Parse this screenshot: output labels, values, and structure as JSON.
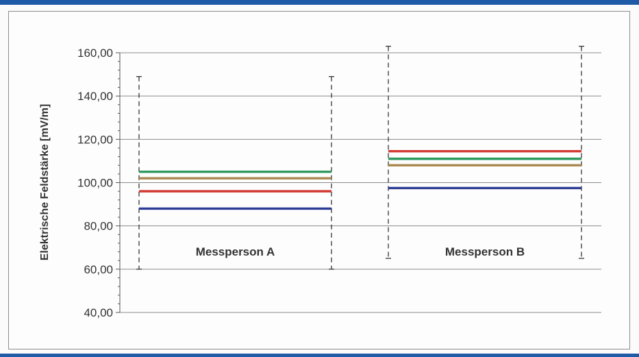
{
  "colors": {
    "accent_bar": "#1f5aa6",
    "grid": "#8a8a8a",
    "axis": "#555555",
    "whisker": "#333333",
    "text": "#333333"
  },
  "chart_data": {
    "type": "line",
    "title": "",
    "xlabel": "",
    "ylabel": "Elektrische Feldstärke [mV/m]",
    "ylim": [
      40,
      160
    ],
    "y_ticks": [
      40,
      60,
      80,
      100,
      120,
      140,
      160
    ],
    "y_tick_labels": [
      "40,00",
      "60,00",
      "80,00",
      "100,00",
      "120,00",
      "140,00",
      "160,00"
    ],
    "grid": true,
    "groups": [
      {
        "label": "Messperson A",
        "whisker_min": 60,
        "whisker_max": 149,
        "series": [
          {
            "color": "#2e9a5e",
            "value": 105
          },
          {
            "color": "#a8874e",
            "value": 102
          },
          {
            "color": "#d33a32",
            "value": 96
          },
          {
            "color": "#2c3b95",
            "value": 88
          }
        ]
      },
      {
        "label": "Messperson B",
        "whisker_min": 65,
        "whisker_max": 163,
        "series": [
          {
            "color": "#d33a32",
            "value": 114.5
          },
          {
            "color": "#2e9a5e",
            "value": 111
          },
          {
            "color": "#a8874e",
            "value": 108
          },
          {
            "color": "#2c3b95",
            "value": 97.5
          }
        ]
      }
    ]
  }
}
